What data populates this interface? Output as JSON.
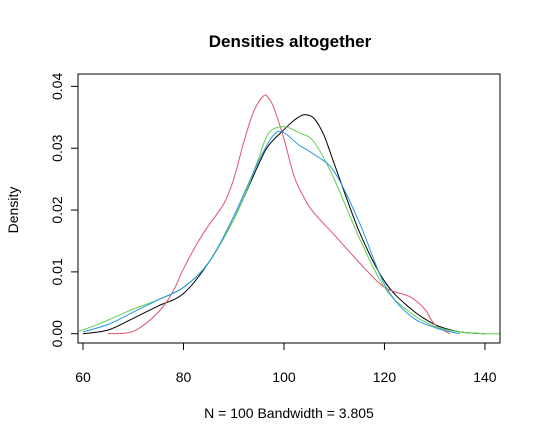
{
  "chart_data": {
    "type": "line",
    "title": "Densities altogether",
    "xlabel": "N = 100   Bandwidth = 3.805",
    "ylabel": "Density",
    "xlim": [
      59,
      143
    ],
    "ylim": [
      -0.0015,
      0.042
    ],
    "x_ticks": [
      "60",
      "80",
      "100",
      "120",
      "140"
    ],
    "y_ticks": [
      "0.00",
      "0.01",
      "0.02",
      "0.03",
      "0.04"
    ],
    "grid": false,
    "series": [
      {
        "color": "#000000",
        "x": [
          60,
          65,
          70,
          75,
          80,
          85,
          90,
          95,
          97,
          100,
          102,
          104,
          106,
          108,
          110,
          115,
          120,
          125,
          130,
          135,
          140
        ],
        "y": [
          0.0,
          0.0006,
          0.0025,
          0.0045,
          0.0065,
          0.0115,
          0.0185,
          0.0275,
          0.0305,
          0.033,
          0.0345,
          0.0354,
          0.0348,
          0.032,
          0.0275,
          0.0165,
          0.0085,
          0.0042,
          0.0015,
          0.0003,
          0.0
        ]
      },
      {
        "color": "#df536b",
        "x": [
          65,
          70,
          75,
          78,
          80,
          83,
          85,
          88,
          90,
          92,
          94,
          96,
          97,
          98,
          100,
          102,
          104,
          106,
          110,
          115,
          120,
          125,
          128,
          130,
          133
        ],
        "y": [
          0.0,
          0.0004,
          0.0035,
          0.007,
          0.0105,
          0.015,
          0.0175,
          0.021,
          0.025,
          0.031,
          0.036,
          0.0385,
          0.038,
          0.0365,
          0.0315,
          0.0255,
          0.022,
          0.0195,
          0.016,
          0.0115,
          0.0075,
          0.006,
          0.004,
          0.0015,
          0.0
        ]
      },
      {
        "color": "#61d04f",
        "x": [
          59,
          62,
          65,
          70,
          75,
          80,
          85,
          90,
          93,
          95,
          97,
          100,
          103,
          106,
          110,
          115,
          120,
          125,
          130,
          135,
          140,
          143
        ],
        "y": [
          0.0004,
          0.0012,
          0.0022,
          0.004,
          0.0055,
          0.0075,
          0.0115,
          0.0185,
          0.024,
          0.0285,
          0.0325,
          0.0335,
          0.0325,
          0.031,
          0.025,
          0.0155,
          0.0075,
          0.0035,
          0.0012,
          0.0003,
          0.0,
          0.0
        ]
      },
      {
        "color": "#2297e6",
        "x": [
          60,
          65,
          70,
          75,
          80,
          85,
          90,
          95,
          98,
          100,
          103,
          106,
          110,
          115,
          120,
          125,
          130,
          135
        ],
        "y": [
          0.0003,
          0.0015,
          0.0035,
          0.0055,
          0.0075,
          0.0115,
          0.019,
          0.028,
          0.0322,
          0.0325,
          0.0305,
          0.029,
          0.0262,
          0.018,
          0.008,
          0.003,
          0.001,
          0.0
        ]
      }
    ]
  }
}
